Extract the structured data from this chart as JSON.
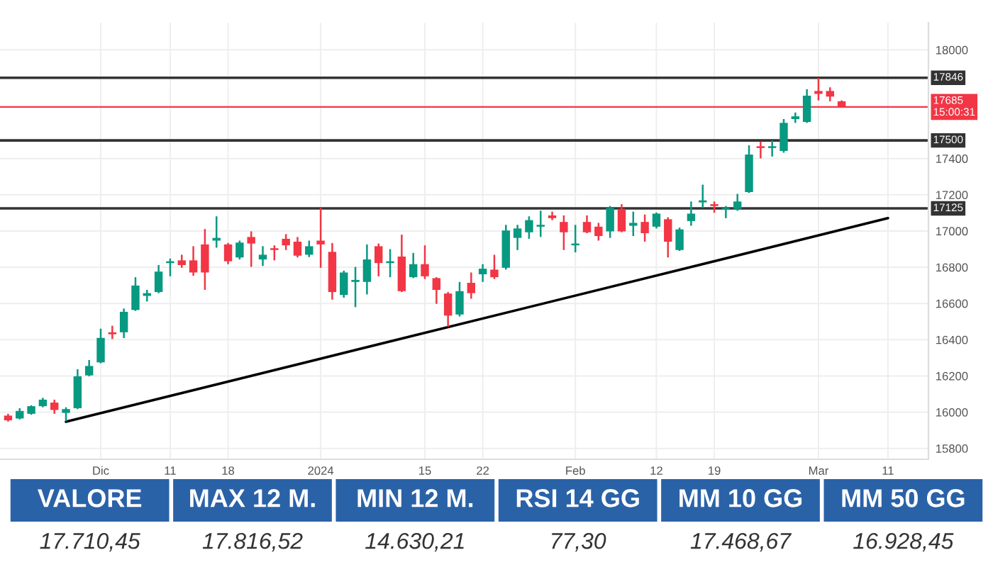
{
  "chart_data": {
    "type": "candlestick",
    "categories": [
      null,
      null,
      null,
      null,
      null,
      null,
      null,
      null,
      "Dic",
      null,
      null,
      null,
      null,
      null,
      "11",
      null,
      null,
      null,
      null,
      "18",
      null,
      null,
      null,
      null,
      null,
      null,
      null,
      "2024",
      null,
      null,
      null,
      null,
      null,
      null,
      null,
      null,
      "15",
      null,
      null,
      null,
      null,
      "22",
      null,
      null,
      null,
      null,
      null,
      null,
      null,
      "Feb",
      null,
      null,
      null,
      null,
      null,
      null,
      "12",
      null,
      null,
      null,
      null,
      "19",
      null,
      null,
      null,
      null,
      null,
      null,
      null,
      null,
      "Mar",
      null,
      null,
      null,
      null,
      null,
      "11",
      null,
      null,
      null
    ],
    "ohlc": [
      [
        15981,
        15991,
        15948,
        15955
      ],
      [
        15965,
        16022,
        15960,
        16007
      ],
      [
        15991,
        16038,
        15986,
        16033
      ],
      [
        16033,
        16079,
        16027,
        16069
      ],
      [
        16053,
        16069,
        15991,
        16012
      ],
      [
        15996,
        16027,
        15950,
        16017
      ],
      [
        16022,
        16237,
        16017,
        16198
      ],
      [
        16203,
        16288,
        16198,
        16255
      ],
      [
        16275,
        16461,
        16270,
        16410
      ],
      [
        16441,
        16477,
        16404,
        16430
      ],
      [
        16441,
        16572,
        16409,
        16554
      ],
      [
        16564,
        16745,
        16559,
        16699
      ],
      [
        16642,
        16675,
        16611,
        16657
      ],
      [
        16663,
        16812,
        16657,
        16776
      ],
      [
        16823,
        16848,
        16750,
        16833
      ],
      [
        16838,
        16869,
        16797,
        16812
      ],
      [
        16838,
        16916,
        16753,
        16771
      ],
      [
        16926,
        17011,
        16675,
        16771
      ],
      [
        16947,
        17081,
        16908,
        16962
      ],
      [
        16926,
        16934,
        16817,
        16833
      ],
      [
        16854,
        16947,
        16843,
        16936
      ],
      [
        16967,
        16998,
        16802,
        16931
      ],
      [
        16843,
        16916,
        16807,
        16869
      ],
      [
        16905,
        16921,
        16838,
        16895
      ],
      [
        16957,
        16983,
        16895,
        16921
      ],
      [
        16941,
        16967,
        16854,
        16864
      ],
      [
        16869,
        16947,
        16856,
        16916
      ],
      [
        16947,
        17127,
        16797,
        16926
      ],
      [
        16885,
        16934,
        16621,
        16663
      ],
      [
        16647,
        16781,
        16632,
        16771
      ],
      [
        16719,
        16802,
        16580,
        16730
      ],
      [
        16719,
        16926,
        16650,
        16843
      ],
      [
        16916,
        16931,
        16750,
        16823
      ],
      [
        16823,
        16900,
        16745,
        16833
      ],
      [
        16859,
        16980,
        16663,
        16668
      ],
      [
        16745,
        16879,
        16740,
        16817
      ],
      [
        16817,
        16921,
        16735,
        16750
      ],
      [
        16740,
        16745,
        16598,
        16675
      ],
      [
        16655,
        16663,
        16471,
        16533
      ],
      [
        16539,
        16719,
        16528,
        16668
      ],
      [
        16714,
        16771,
        16626,
        16657
      ],
      [
        16761,
        16817,
        16719,
        16792
      ],
      [
        16787,
        16869,
        16735,
        16745
      ],
      [
        16797,
        17034,
        16787,
        17003
      ],
      [
        16962,
        17034,
        16895,
        17014
      ],
      [
        16993,
        17081,
        16957,
        17060
      ],
      [
        17024,
        17112,
        16967,
        17034
      ],
      [
        17086,
        17107,
        17060,
        17071
      ],
      [
        17050,
        17086,
        16895,
        16993
      ],
      [
        16921,
        17034,
        16882,
        16931
      ],
      [
        17050,
        17086,
        16988,
        16993
      ],
      [
        17024,
        17045,
        16947,
        16972
      ],
      [
        16998,
        17138,
        16962,
        17127
      ],
      [
        17122,
        17148,
        16993,
        16998
      ],
      [
        17029,
        17107,
        16972,
        17045
      ],
      [
        17050,
        17091,
        16941,
        16988
      ],
      [
        17024,
        17102,
        17014,
        17096
      ],
      [
        17065,
        17076,
        16854,
        16941
      ],
      [
        16895,
        17019,
        16890,
        17009
      ],
      [
        17055,
        17163,
        17029,
        17096
      ],
      [
        17158,
        17256,
        17127,
        17169
      ],
      [
        17148,
        17163,
        17101,
        17138
      ],
      [
        17117,
        17138,
        17071,
        17127
      ],
      [
        17122,
        17205,
        17112,
        17163
      ],
      [
        17215,
        17473,
        17210,
        17422
      ],
      [
        17468,
        17494,
        17401,
        17458
      ],
      [
        17458,
        17499,
        17411,
        17468
      ],
      [
        17442,
        17618,
        17432,
        17597
      ],
      [
        17618,
        17654,
        17597,
        17633
      ],
      [
        17602,
        17783,
        17597,
        17747
      ],
      [
        17773,
        17845,
        17721,
        17757
      ],
      [
        17773,
        17793,
        17716,
        17742
      ],
      [
        17716,
        17721,
        17680,
        17685
      ],
      null,
      null,
      null,
      null,
      null,
      null,
      null
    ],
    "series": [
      {
        "type": "line",
        "values": [
          null,
          null,
          null,
          null,
          null,
          15947,
          null,
          null,
          null,
          null,
          null,
          null,
          null,
          null,
          null,
          null,
          null,
          null,
          null,
          null,
          null,
          null,
          null,
          null,
          null,
          null,
          null,
          null,
          null,
          null,
          null,
          null,
          null,
          null,
          null,
          null,
          null,
          null,
          null,
          null,
          null,
          null,
          null,
          null,
          null,
          null,
          null,
          null,
          null,
          null,
          null,
          null,
          null,
          null,
          null,
          null,
          null,
          null,
          null,
          null,
          null,
          null,
          null,
          null,
          null,
          null,
          null,
          null,
          null,
          null,
          null,
          null,
          null,
          null,
          null,
          null,
          17071,
          null,
          null,
          null
        ],
        "color": "#000000"
      }
    ],
    "ylim": [
      15740,
      18150
    ],
    "yticks": [
      15800,
      16000,
      16200,
      16400,
      16600,
      16800,
      17000,
      17200,
      17400,
      18000
    ],
    "grid": true,
    "ref_lines": [
      {
        "axis": "y",
        "value": 17846,
        "label": "17846",
        "color": "#333333"
      },
      {
        "axis": "y",
        "value": 17500,
        "label": "17500",
        "color": "#333333"
      },
      {
        "axis": "y",
        "value": 17125,
        "label": "17125",
        "color": "#333333"
      },
      {
        "axis": "y",
        "value": 17685,
        "label": "17685\n15:00:31",
        "color": "#f23645"
      }
    ],
    "annotations": [
      "VALORE",
      "17.710,45",
      "MAX 12 M.",
      "17.816,52",
      "MIN 12 M.",
      "14.630,21",
      "RSI 14 GG",
      "77,30",
      "MM 10 GG",
      "17.468,67",
      "MM 50 GG",
      "16.928,45"
    ]
  }
}
